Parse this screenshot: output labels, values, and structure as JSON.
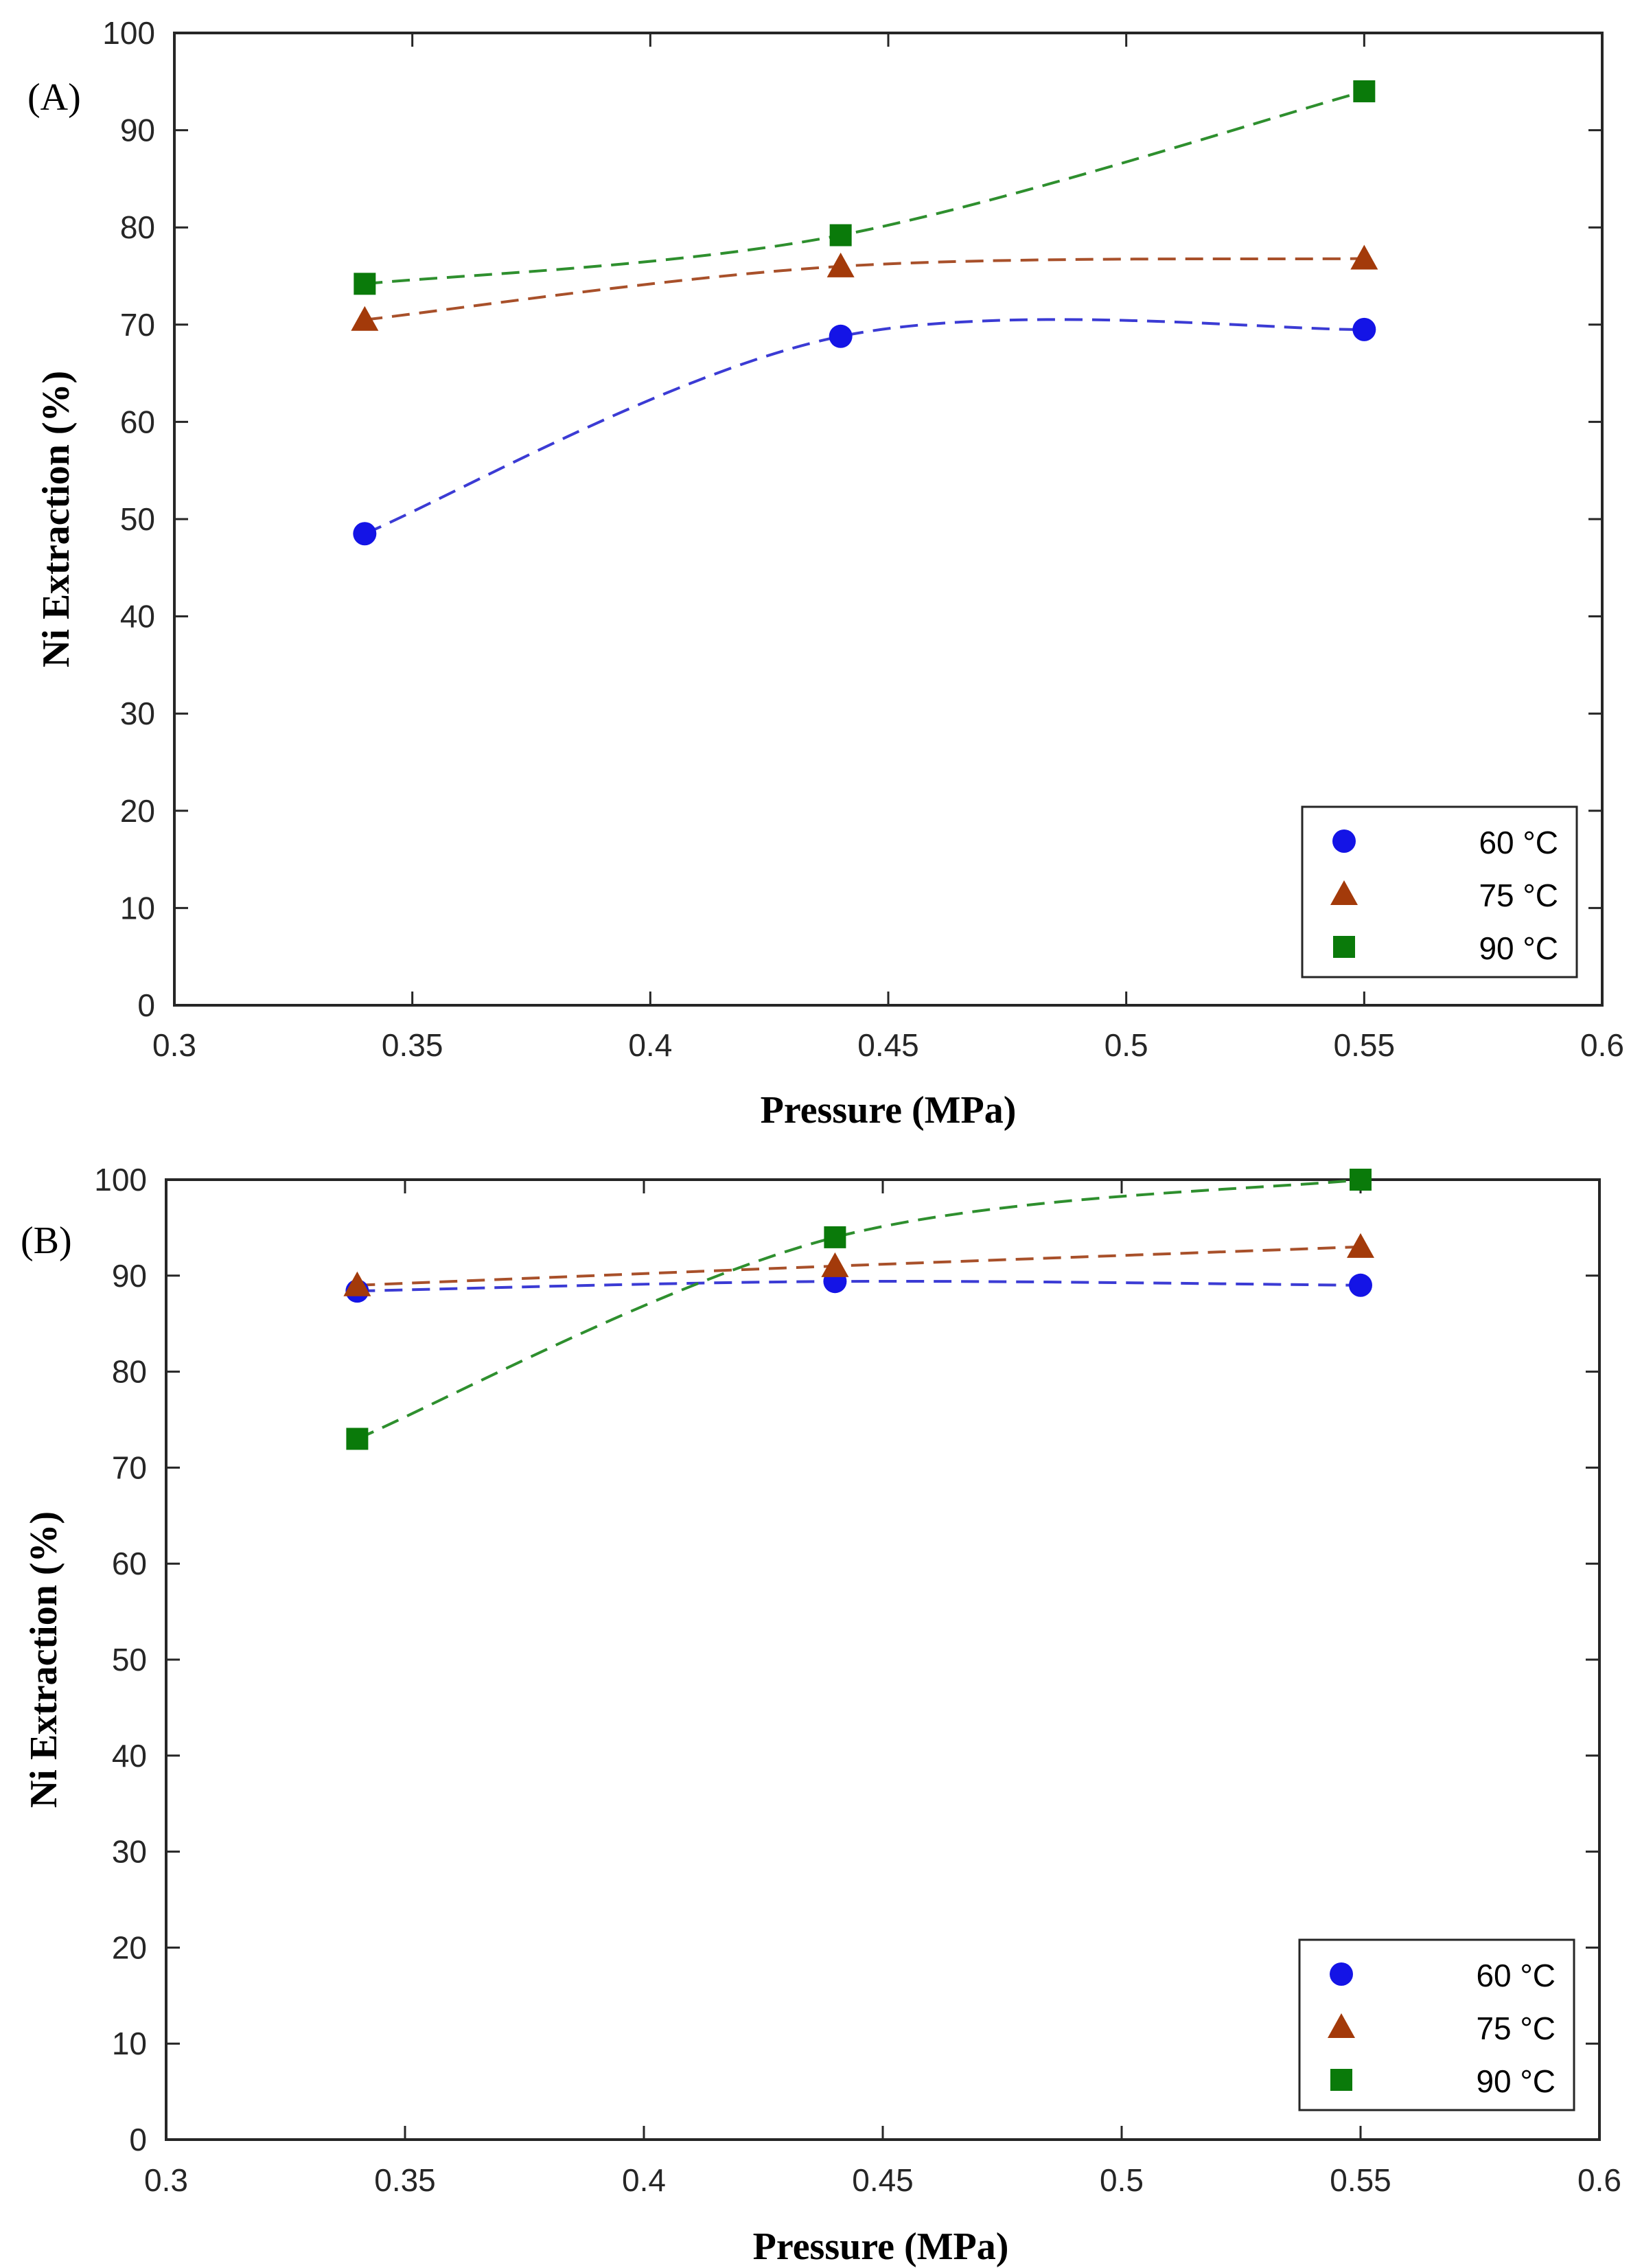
{
  "chart_data": [
    {
      "type": "line",
      "panel_label": "(A)",
      "xlabel": "Pressure (MPa)",
      "ylabel": "Ni Extraction (%)",
      "xlim": [
        0.3,
        0.6
      ],
      "ylim": [
        0,
        100
      ],
      "xticks": [
        0.3,
        0.35,
        0.4,
        0.45,
        0.5,
        0.55,
        0.6
      ],
      "xtick_labels": [
        "0.3",
        "0.35",
        "0.4",
        "0.45",
        "0.5",
        "0.55",
        "0.6"
      ],
      "yticks": [
        0,
        10,
        20,
        30,
        40,
        50,
        60,
        70,
        80,
        90,
        100
      ],
      "ytick_labels": [
        "0",
        "10",
        "20",
        "30",
        "40",
        "50",
        "60",
        "70",
        "80",
        "90",
        "100"
      ],
      "x": [
        0.34,
        0.44,
        0.55
      ],
      "legend_position": "bottom-right",
      "series": [
        {
          "name": "60 °C",
          "marker": "circle",
          "color": "#1414e6",
          "line_color": "#3b3bd4",
          "values": [
            48.5,
            68.8,
            69.5
          ]
        },
        {
          "name": "75 °C",
          "marker": "triangle",
          "color": "#a33a0a",
          "line_color": "#a8502a",
          "values": [
            70.5,
            76,
            76.8
          ]
        },
        {
          "name": "90 °C",
          "marker": "square",
          "color": "#0a7a0a",
          "line_color": "#2e8f2e",
          "values": [
            74.2,
            79.2,
            94
          ]
        }
      ]
    },
    {
      "type": "line",
      "panel_label": "(B)",
      "xlabel": "Pressure (MPa)",
      "ylabel": "Ni Extraction (%)",
      "xlim": [
        0.3,
        0.6
      ],
      "ylim": [
        0,
        100
      ],
      "xticks": [
        0.3,
        0.35,
        0.4,
        0.45,
        0.5,
        0.55,
        0.6
      ],
      "xtick_labels": [
        "0.3",
        "0.35",
        "0.4",
        "0.45",
        "0.5",
        "0.55",
        "0.6"
      ],
      "yticks": [
        0,
        10,
        20,
        30,
        40,
        50,
        60,
        70,
        80,
        90,
        100
      ],
      "ytick_labels": [
        "0",
        "10",
        "20",
        "30",
        "40",
        "50",
        "60",
        "70",
        "80",
        "90",
        "100"
      ],
      "x": [
        0.34,
        0.44,
        0.55
      ],
      "legend_position": "bottom-right",
      "series": [
        {
          "name": "60 °C",
          "marker": "circle",
          "color": "#1414e6",
          "line_color": "#3b3bd4",
          "values": [
            88.4,
            89.4,
            89
          ]
        },
        {
          "name": "75 °C",
          "marker": "triangle",
          "color": "#a33a0a",
          "line_color": "#a8502a",
          "values": [
            89,
            91,
            93
          ]
        },
        {
          "name": "90 °C",
          "marker": "square",
          "color": "#0a7a0a",
          "line_color": "#2e8f2e",
          "values": [
            73,
            94,
            100
          ]
        }
      ]
    }
  ]
}
